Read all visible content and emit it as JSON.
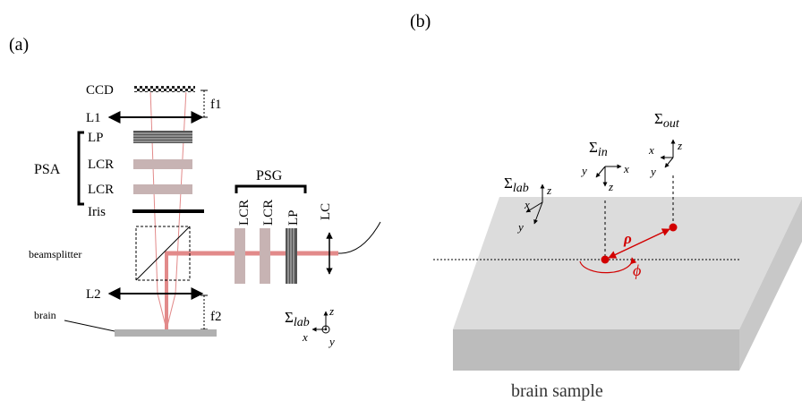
{
  "panel_a": {
    "label": "(a)",
    "ccd": "CCD",
    "f1": "f1",
    "l1": "L1",
    "lp": "LP",
    "psa": "PSA",
    "lcr1": "LCR",
    "lcr2": "LCR",
    "iris": "Iris",
    "psg": "PSG",
    "psg_lcr1": "LCR",
    "psg_lcr2": "LCR",
    "psg_lp": "LP",
    "lc": "LC",
    "beamsplitter": "beamsplitter",
    "l2": "L2",
    "brain": "brain",
    "f2": "f2",
    "sigma_lab": "Σ",
    "sigma_lab_sub": "lab",
    "axis_z": "z",
    "axis_x": "x",
    "axis_y": "y"
  },
  "panel_b": {
    "label": "(b)",
    "sigma_out": "Σ",
    "sigma_out_sub": "out",
    "sigma_in": "Σ",
    "sigma_in_sub": "in",
    "sigma_lab": "Σ",
    "sigma_lab_sub": "lab",
    "axis_x": "x",
    "axis_y": "y",
    "axis_z": "z",
    "rho": "ρ",
    "phi": "ϕ",
    "caption": "brain sample"
  },
  "colors": {
    "beam": "#e28a8a",
    "accent_red": "#d20000",
    "retarder": "#c7b3b3",
    "sample_top": "#dcdcdc",
    "sample_side": "#bcbcbc"
  }
}
